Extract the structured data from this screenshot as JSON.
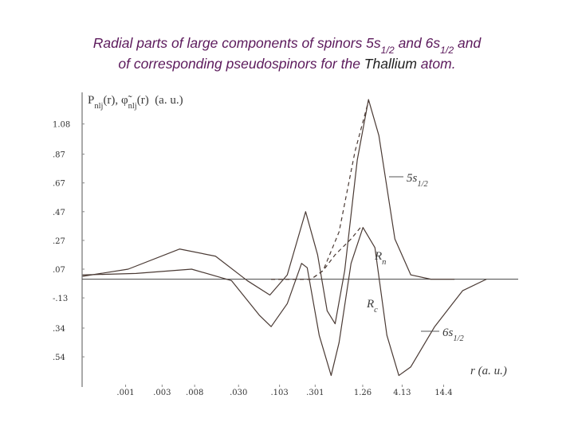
{
  "chart_data": {
    "type": "line",
    "title": {
      "lines": [
        [
          {
            "text": "Radial parts of large components of spinors 5s"
          },
          {
            "text": "1/2",
            "sub": true
          },
          {
            "text": " and 6s"
          },
          {
            "text": "1/2",
            "sub": true
          },
          {
            "text": " and"
          }
        ],
        [
          {
            "text": "of corresponding pseudospinors for the "
          },
          {
            "text": "Thallium",
            "color": "#1e1e1e"
          },
          {
            "text": " atom."
          }
        ]
      ]
    },
    "ylabel": [
      {
        "text": "P"
      },
      {
        "text": "nlj",
        "sub": true
      },
      {
        "text": "(r), "
      },
      {
        "text": "φ̃"
      },
      {
        "text": "nlj",
        "sub": true
      },
      {
        "text": "(r)  (a. u.)"
      }
    ],
    "xlabel": "r (a. u.)",
    "xscale": "log",
    "xlim": [
      0.00027,
      136
    ],
    "ylim": [
      -0.75,
      1.3
    ],
    "xticks": [
      {
        "value": 0.001,
        "label": ".001"
      },
      {
        "value": 0.003,
        "label": ".003"
      },
      {
        "value": 0.008,
        "label": ".008"
      },
      {
        "value": 0.03,
        "label": ".030"
      },
      {
        "value": 0.103,
        "label": ".103"
      },
      {
        "value": 0.301,
        "label": ".301"
      },
      1.26,
      4.13,
      14.4
    ],
    "yticks": [
      1.08,
      {
        "value": 0.87,
        "label": ".87"
      },
      {
        "value": 0.67,
        "label": ".67"
      },
      {
        "value": 0.47,
        "label": ".47"
      },
      {
        "value": 0.27,
        "label": ".27"
      },
      {
        "value": 0.07,
        "label": ".07"
      },
      {
        "value": -0.13,
        "label": "-.13"
      },
      {
        "value": -0.34,
        "label": ".34"
      },
      {
        "value": -0.54,
        "label": ".54"
      }
    ],
    "grid": false,
    "series": [
      {
        "name": "5s",
        "name_sub": "1/2",
        "color": "#4a3a34",
        "dashed": false,
        "x": [
          0.000274,
          0.00108,
          0.0051,
          0.015,
          0.039,
          0.077,
          0.13,
          0.226,
          0.324,
          0.432,
          0.549,
          0.733,
          1.07,
          1.5,
          2.05,
          3.32,
          5.36,
          9.77,
          20
        ],
        "values": [
          0.02,
          0.07,
          0.21,
          0.16,
          -0.01,
          -0.11,
          0.03,
          0.47,
          0.17,
          -0.22,
          -0.31,
          0.06,
          0.83,
          1.25,
          1.0,
          0.28,
          0.03,
          0,
          0
        ]
      },
      {
        "name": "6s",
        "name_sub": "1/2",
        "color": "#4a3a34",
        "dashed": false,
        "x": [
          0.000274,
          0.00137,
          0.0073,
          0.0243,
          0.056,
          0.08,
          0.13,
          0.2,
          0.237,
          0.34,
          0.487,
          0.619,
          0.887,
          1.27,
          1.82,
          2.61,
          3.74,
          5.36,
          11,
          25.5,
          52.3
        ],
        "values": [
          0.03,
          0.04,
          0.07,
          -0.01,
          -0.25,
          -0.33,
          -0.17,
          0.11,
          0.08,
          -0.39,
          -0.67,
          -0.44,
          0.11,
          0.36,
          0.22,
          -0.39,
          -0.67,
          -0.61,
          -0.33,
          -0.08,
          0
        ]
      },
      {
        "name": "R",
        "name_sub": "n",
        "color": "#4a3a34",
        "dashed": true,
        "x": [
          0.08,
          0.267,
          0.383,
          0.619,
          1.0,
          1.5
        ],
        "values": [
          0,
          0,
          0.06,
          0.33,
          0.89,
          1.24
        ]
      },
      {
        "name": "R",
        "name_sub": "c",
        "color": "#4a3a34",
        "dashed": true,
        "x": [
          0.08,
          0.267,
          0.383,
          0.549,
          0.887,
          1.18
        ],
        "values": [
          0,
          0,
          0.06,
          0.17,
          0.28,
          0.36
        ]
      }
    ]
  }
}
